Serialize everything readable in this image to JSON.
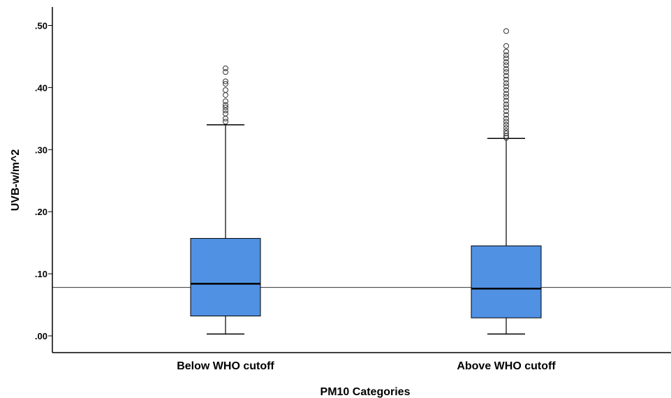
{
  "chart_data": {
    "type": "boxplot",
    "xlabel": "PM10 Categories",
    "ylabel": "UVB-w/m^2",
    "ylim": [
      0,
      0.53
    ],
    "yticks": [
      {
        "value": 0.0,
        "label": ".00"
      },
      {
        "value": 0.1,
        "label": ".10"
      },
      {
        "value": 0.2,
        "label": ".20"
      },
      {
        "value": 0.3,
        "label": ".30"
      },
      {
        "value": 0.4,
        "label": ".40"
      },
      {
        "value": 0.5,
        "label": ".50"
      }
    ],
    "reference_line": 0.078,
    "box_color": "#5091e3",
    "categories": [
      "Below WHO cutoff",
      "Above WHO cutoff"
    ],
    "boxes": [
      {
        "category": "Below WHO cutoff",
        "min": 0.003,
        "q1": 0.032,
        "median": 0.084,
        "q3": 0.157,
        "max": 0.34,
        "outliers": [
          0.345,
          0.35,
          0.358,
          0.363,
          0.368,
          0.372,
          0.378,
          0.388,
          0.396,
          0.406,
          0.41,
          0.425,
          0.431
        ]
      },
      {
        "category": "Above WHO cutoff",
        "min": 0.003,
        "q1": 0.029,
        "median": 0.076,
        "q3": 0.145,
        "max": 0.318,
        "outliers": [
          0.319,
          0.322,
          0.326,
          0.33,
          0.335,
          0.34,
          0.345,
          0.35,
          0.356,
          0.362,
          0.368,
          0.373,
          0.379,
          0.385,
          0.39,
          0.396,
          0.402,
          0.407,
          0.413,
          0.419,
          0.425,
          0.43,
          0.436,
          0.441,
          0.447,
          0.452,
          0.458,
          0.467,
          0.491
        ]
      }
    ]
  }
}
